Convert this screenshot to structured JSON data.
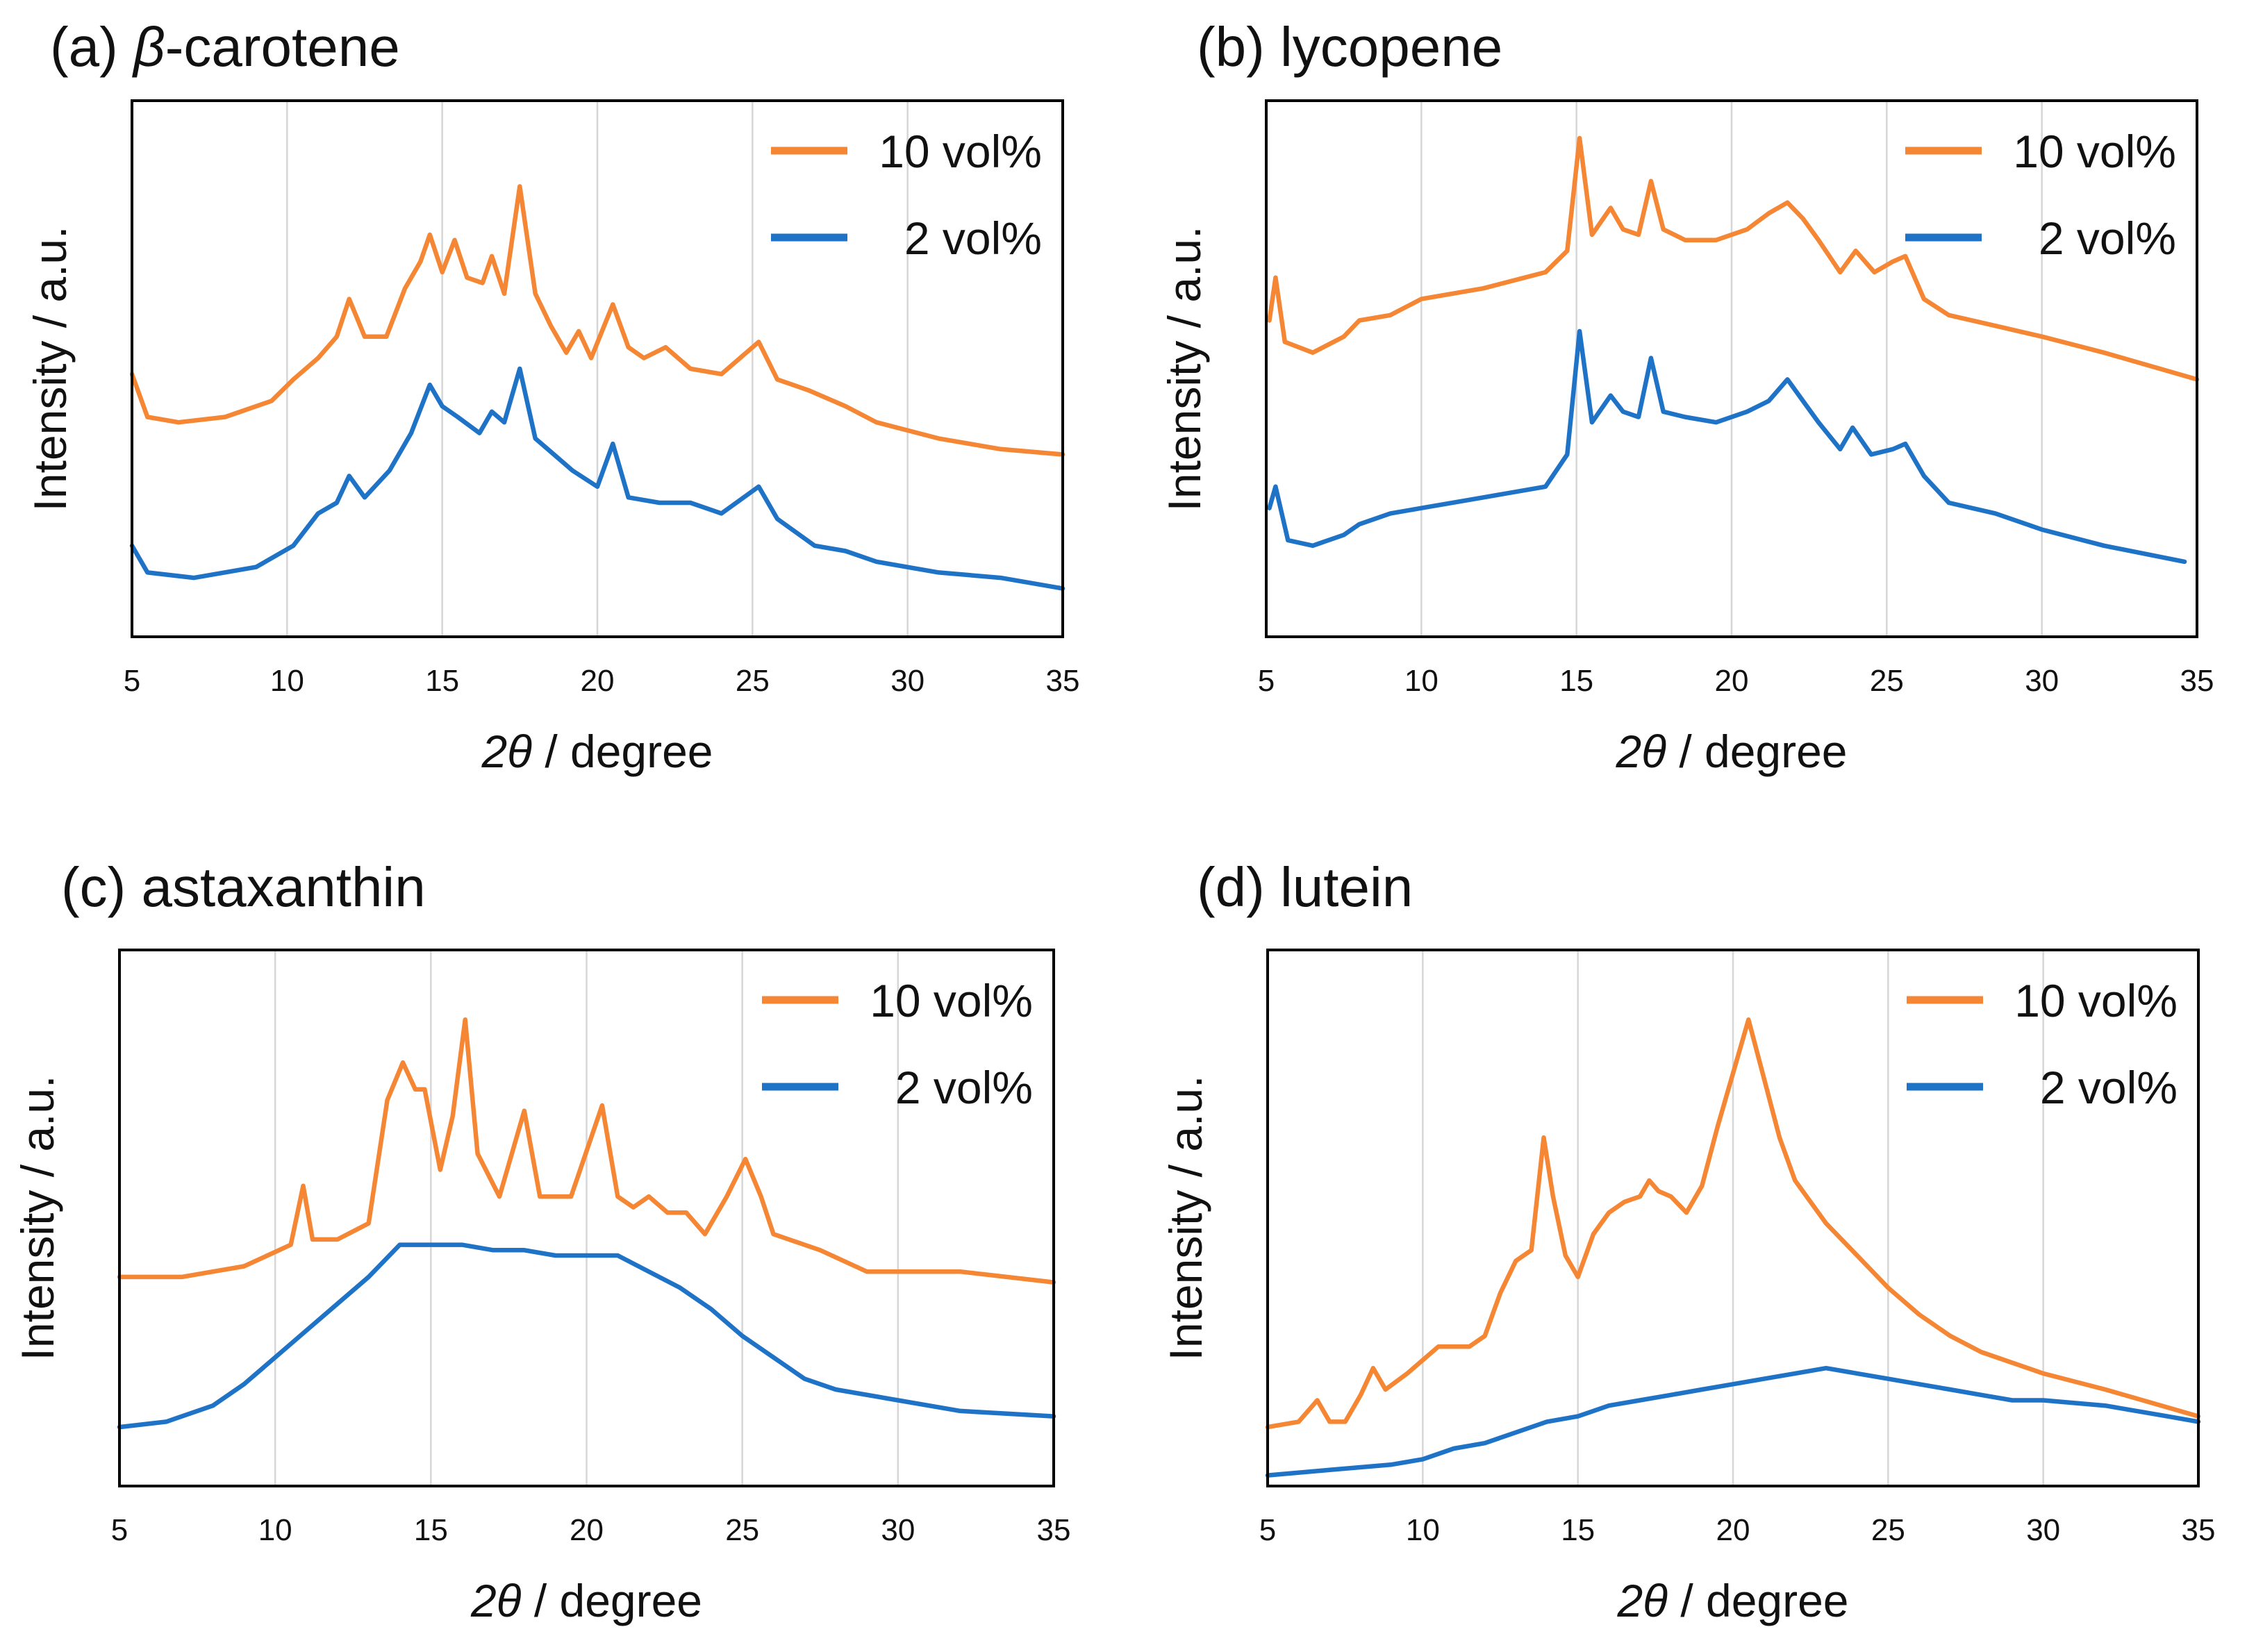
{
  "colors": {
    "series_10vol": "#F58634",
    "series_2vol": "#1F73C7",
    "grid": "#d6d6d6",
    "frame": "#000000"
  },
  "chart_data": [
    {
      "type": "line",
      "panel": "(a)",
      "compound": "β-carotene",
      "compound_italic_prefix": "β",
      "compound_suffix": "-carotene",
      "xlabel_italic": "2θ",
      "xlabel_rest": " / degree",
      "ylabel": "Intensity / a.u.",
      "xlim": [
        5,
        35
      ],
      "ylim": [
        0,
        100
      ],
      "xticks": [
        "5",
        "10",
        "15",
        "20",
        "25",
        "30",
        "35"
      ],
      "grid": "vertical",
      "legend": "top-right",
      "series": [
        {
          "name": "10 vol%",
          "color": "#F58634",
          "x": [
            5,
            5.5,
            6.5,
            8,
            9.5,
            10.2,
            11,
            11.6,
            12,
            12.5,
            13.2,
            13.8,
            14.3,
            14.6,
            15,
            15.4,
            15.8,
            16.3,
            16.6,
            17,
            17.5,
            18,
            18.5,
            19,
            19.4,
            19.8,
            20.5,
            21,
            21.5,
            22.2,
            23,
            24,
            25.2,
            25.8,
            26.8,
            28,
            29,
            31,
            33,
            35
          ],
          "y": [
            49,
            41,
            40,
            41,
            44,
            48,
            52,
            56,
            63,
            56,
            56,
            65,
            70,
            75,
            68,
            74,
            67,
            66,
            71,
            64,
            84,
            64,
            58,
            53,
            57,
            52,
            62,
            54,
            52,
            54,
            50,
            49,
            55,
            48,
            46,
            43,
            40,
            37,
            35,
            34
          ]
        },
        {
          "name": "2 vol%",
          "color": "#1F73C7",
          "x": [
            5,
            5.5,
            7,
            9,
            10.2,
            11,
            11.6,
            12,
            12.5,
            13.3,
            14,
            14.6,
            15,
            15.5,
            16.2,
            16.6,
            17,
            17.5,
            18,
            18.6,
            19.2,
            20,
            20.5,
            21,
            22,
            23,
            24,
            25.2,
            25.8,
            27,
            28,
            29,
            31,
            33,
            35
          ],
          "y": [
            17,
            12,
            11,
            13,
            17,
            23,
            25,
            30,
            26,
            31,
            38,
            47,
            43,
            41,
            38,
            42,
            40,
            50,
            37,
            34,
            31,
            28,
            36,
            26,
            25,
            25,
            23,
            28,
            22,
            17,
            16,
            14,
            12,
            11,
            9
          ]
        }
      ]
    },
    {
      "type": "line",
      "panel": "(b)",
      "compound": "lycopene",
      "xlabel_italic": "2θ",
      "xlabel_rest": " / degree",
      "ylabel": "Intensity / a.u.",
      "xlim": [
        5,
        35
      ],
      "ylim": [
        0,
        100
      ],
      "xticks": [
        "5",
        "10",
        "15",
        "20",
        "25",
        "30",
        "35"
      ],
      "grid": "vertical",
      "legend": "top-right",
      "series": [
        {
          "name": "10 vol%",
          "color": "#F58634",
          "x": [
            5.1,
            5.3,
            5.6,
            6.5,
            7.5,
            8,
            9,
            10,
            12,
            14,
            14.7,
            15.1,
            15.5,
            16.1,
            16.5,
            17,
            17.4,
            17.8,
            18.5,
            19.5,
            20.5,
            21.2,
            21.8,
            22.3,
            22.8,
            23.5,
            24,
            24.6,
            25.2,
            25.6,
            26.2,
            27,
            28.5,
            30,
            32,
            35
          ],
          "y": [
            59,
            67,
            55,
            53,
            56,
            59,
            60,
            63,
            65,
            68,
            72,
            93,
            75,
            80,
            76,
            75,
            85,
            76,
            74,
            74,
            76,
            79,
            81,
            78,
            74,
            68,
            72,
            68,
            70,
            71,
            63,
            60,
            58,
            56,
            53,
            48
          ]
        },
        {
          "name": "2 vol%",
          "color": "#1F73C7",
          "x": [
            5.1,
            5.3,
            5.7,
            6.5,
            7.5,
            8,
            9,
            10,
            12,
            14,
            14.7,
            15.1,
            15.5,
            16.1,
            16.5,
            17,
            17.4,
            17.8,
            18.5,
            19.5,
            20.5,
            21.2,
            21.8,
            22.3,
            22.8,
            23.5,
            23.9,
            24.5,
            25.2,
            25.6,
            26.2,
            27,
            28.5,
            30,
            32,
            34.6
          ],
          "y": [
            24,
            28,
            18,
            17,
            19,
            21,
            23,
            24,
            26,
            28,
            34,
            57,
            40,
            45,
            42,
            41,
            52,
            42,
            41,
            40,
            42,
            44,
            48,
            44,
            40,
            35,
            39,
            34,
            35,
            36,
            30,
            25,
            23,
            20,
            17,
            14
          ]
        }
      ]
    },
    {
      "type": "line",
      "panel": "(c)",
      "compound": "astaxanthin",
      "xlabel_italic": "2θ",
      "xlabel_rest": " / degree",
      "ylabel": "Intensity / a.u.",
      "xlim": [
        5,
        35
      ],
      "ylim": [
        0,
        100
      ],
      "xticks": [
        "5",
        "10",
        "15",
        "20",
        "25",
        "30",
        "35"
      ],
      "grid": "vertical",
      "legend": "top-right",
      "series": [
        {
          "name": "10 vol%",
          "color": "#F58634",
          "x": [
            5,
            7,
            9,
            10.5,
            10.9,
            11.2,
            12,
            13,
            13.6,
            14.1,
            14.5,
            14.8,
            15.3,
            15.7,
            16.1,
            16.5,
            17.2,
            18,
            18.5,
            19.5,
            20.5,
            21,
            21.5,
            22,
            22.6,
            23.2,
            23.8,
            24.5,
            25.1,
            25.6,
            26,
            27.5,
            29,
            30,
            32,
            35
          ],
          "y": [
            39,
            39,
            41,
            45,
            56,
            46,
            46,
            49,
            72,
            79,
            74,
            74,
            59,
            69,
            87,
            62,
            54,
            70,
            54,
            54,
            71,
            54,
            52,
            54,
            51,
            51,
            47,
            54,
            61,
            54,
            47,
            44,
            40,
            40,
            40,
            38
          ]
        },
        {
          "name": "2 vol%",
          "color": "#1F73C7",
          "x": [
            5,
            6.5,
            8,
            9,
            10,
            11,
            12,
            13,
            14,
            15,
            16,
            17,
            18,
            19,
            20,
            21,
            22,
            23,
            24,
            25,
            26,
            27,
            28,
            30,
            32,
            35
          ],
          "y": [
            11,
            12,
            15,
            19,
            24,
            29,
            34,
            39,
            45,
            45,
            45,
            44,
            44,
            43,
            43,
            43,
            40,
            37,
            33,
            28,
            24,
            20,
            18,
            16,
            14,
            13
          ]
        }
      ]
    },
    {
      "type": "line",
      "panel": "(d)",
      "compound": "lutein",
      "xlabel_italic": "2θ",
      "xlabel_rest": " / degree",
      "ylabel": "Intensity / a.u.",
      "xlim": [
        5,
        35
      ],
      "ylim": [
        0,
        100
      ],
      "xticks": [
        "5",
        "10",
        "15",
        "20",
        "25",
        "30",
        "35"
      ],
      "grid": "vertical",
      "legend": "top-right",
      "series": [
        {
          "name": "10 vol%",
          "color": "#F58634",
          "x": [
            5,
            6,
            6.6,
            7,
            7.5,
            8,
            8.4,
            8.8,
            9.5,
            10.5,
            11.5,
            12,
            12.5,
            13,
            13.5,
            13.9,
            14.2,
            14.6,
            15,
            15.5,
            16,
            16.5,
            17,
            17.3,
            17.6,
            18,
            18.5,
            19,
            19.5,
            20,
            20.5,
            21,
            21.5,
            22,
            23,
            24,
            25,
            26,
            27,
            28,
            30,
            32,
            35
          ],
          "y": [
            11,
            12,
            16,
            12,
            12,
            17,
            22,
            18,
            21,
            26,
            26,
            28,
            36,
            42,
            44,
            65,
            54,
            43,
            39,
            47,
            51,
            53,
            54,
            57,
            55,
            54,
            51,
            56,
            67,
            77,
            87,
            76,
            65,
            57,
            49,
            43,
            37,
            32,
            28,
            25,
            21,
            18,
            13
          ]
        },
        {
          "name": "2 vol%",
          "color": "#1F73C7",
          "x": [
            5,
            7,
            9,
            10,
            11,
            12,
            13,
            14,
            15,
            16,
            17,
            18,
            19,
            20,
            21,
            22,
            23,
            24,
            25,
            26,
            27,
            28,
            29,
            30,
            32,
            34,
            35
          ],
          "y": [
            2,
            3,
            4,
            5,
            7,
            8,
            10,
            12,
            13,
            15,
            16,
            17,
            18,
            19,
            20,
            21,
            22,
            21,
            20,
            19,
            18,
            17,
            16,
            16,
            15,
            13,
            12
          ]
        }
      ]
    }
  ]
}
